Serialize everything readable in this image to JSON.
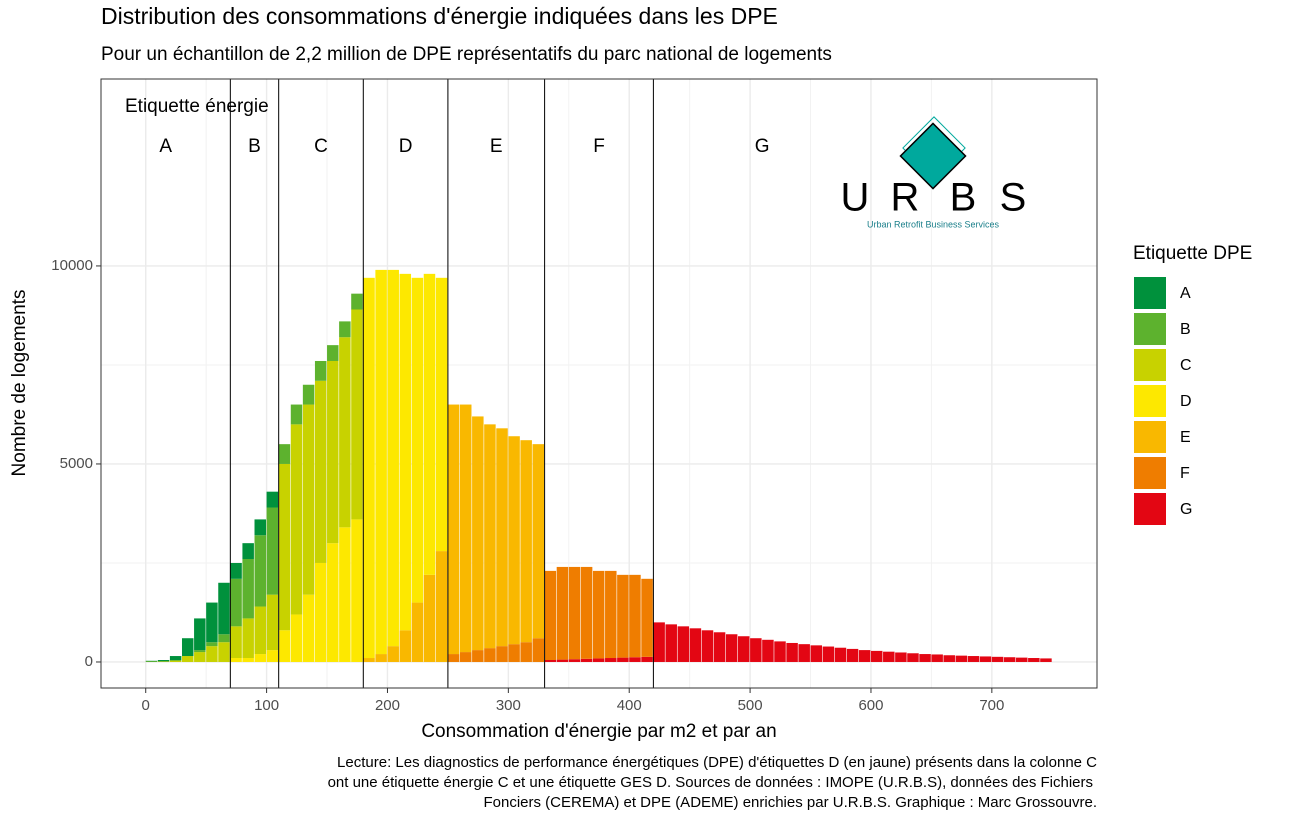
{
  "chart_data": {
    "type": "stacked_histogram",
    "title": "Distribution des consommations d'énergie indiquées dans les DPE",
    "subtitle": "Pour un échantillon de 2,2 million de DPE représentatifs du parc national de logements",
    "x_label": "Consommation d'énergie par m2 et par an",
    "y_label": "Nombre de logements",
    "legend_title": "Etiquette DPE",
    "class_title": "Etiquette énergie",
    "class_bounds": [
      70,
      110,
      180,
      250,
      330,
      420
    ],
    "class_labels": [
      "A",
      "B",
      "C",
      "D",
      "E",
      "F",
      "G"
    ],
    "bins": [
      0,
      10,
      20,
      30,
      40,
      50,
      60,
      70,
      80,
      90,
      100,
      110,
      120,
      130,
      140,
      150,
      160,
      170,
      180,
      190,
      200,
      210,
      220,
      230,
      240,
      250,
      260,
      270,
      280,
      290,
      300,
      310,
      320,
      330,
      340,
      350,
      360,
      370,
      380,
      390,
      400,
      410,
      420,
      430,
      440,
      450,
      460,
      470,
      480,
      490,
      500,
      510,
      520,
      530,
      540,
      550,
      560,
      570,
      580,
      590,
      600,
      610,
      620,
      630,
      640,
      650,
      660,
      670,
      680,
      690,
      700,
      710,
      720,
      730,
      740,
      750
    ],
    "series": [
      {
        "name": "A",
        "color": "#00913c",
        "values": [
          20,
          35,
          110,
          450,
          800,
          1000,
          1300,
          400,
          400,
          400,
          400,
          0,
          0,
          0,
          0,
          0,
          0,
          0,
          0,
          0,
          0,
          0,
          0,
          0,
          0,
          0,
          0,
          0,
          0,
          0,
          0,
          0,
          0,
          0,
          0,
          0,
          0,
          0,
          0,
          0,
          0,
          0,
          0,
          0,
          0,
          0,
          0,
          0,
          0,
          0,
          0,
          0,
          0,
          0,
          0,
          0,
          0,
          0,
          0,
          0,
          0,
          0,
          0,
          0,
          0,
          0,
          0,
          0,
          0,
          0,
          0,
          0,
          0,
          0,
          0
        ]
      },
      {
        "name": "B",
        "color": "#5db22e",
        "values": [
          0,
          0,
          0,
          0,
          50,
          100,
          200,
          1200,
          1500,
          1800,
          2200,
          500,
          500,
          500,
          500,
          400,
          400,
          400,
          0,
          0,
          0,
          0,
          0,
          0,
          0,
          0,
          0,
          0,
          0,
          0,
          0,
          0,
          0,
          0,
          0,
          0,
          0,
          0,
          0,
          0,
          0,
          0,
          0,
          0,
          0,
          0,
          0,
          0,
          0,
          0,
          0,
          0,
          0,
          0,
          0,
          0,
          0,
          0,
          0,
          0,
          0,
          0,
          0,
          0,
          0,
          0,
          0,
          0,
          0,
          0,
          0,
          0,
          0,
          0,
          0
        ]
      },
      {
        "name": "C",
        "color": "#c8d200",
        "values": [
          10,
          15,
          40,
          150,
          250,
          400,
          500,
          800,
          1000,
          1200,
          1400,
          4200,
          4800,
          4800,
          4600,
          4600,
          4800,
          5300,
          0,
          0,
          0,
          0,
          0,
          0,
          0,
          0,
          0,
          0,
          0,
          0,
          0,
          0,
          0,
          0,
          0,
          0,
          0,
          0,
          0,
          0,
          0,
          0,
          0,
          0,
          0,
          0,
          0,
          0,
          0,
          0,
          0,
          0,
          0,
          0,
          0,
          0,
          0,
          0,
          0,
          0,
          0,
          0,
          0,
          0,
          0,
          0,
          0,
          0,
          0,
          0,
          0,
          0,
          0,
          0,
          0
        ]
      },
      {
        "name": "D",
        "color": "#fde800",
        "values": [
          0,
          0,
          0,
          0,
          0,
          0,
          0,
          100,
          100,
          200,
          300,
          800,
          1200,
          1700,
          2500,
          3000,
          3400,
          3600,
          9600,
          9700,
          9500,
          9000,
          8200,
          7600,
          6900,
          0,
          0,
          0,
          0,
          0,
          0,
          0,
          0,
          0,
          0,
          0,
          0,
          0,
          0,
          0,
          0,
          0,
          0,
          0,
          0,
          0,
          0,
          0,
          0,
          0,
          0,
          0,
          0,
          0,
          0,
          0,
          0,
          0,
          0,
          0,
          0,
          0,
          0,
          0,
          0,
          0,
          0,
          0,
          0,
          0,
          0,
          0,
          0,
          0,
          0
        ]
      },
      {
        "name": "E",
        "color": "#f9b800",
        "values": [
          0,
          0,
          0,
          0,
          0,
          0,
          0,
          0,
          0,
          0,
          0,
          0,
          0,
          0,
          0,
          0,
          0,
          0,
          100,
          200,
          400,
          800,
          1500,
          2200,
          2800,
          6300,
          6250,
          5900,
          5650,
          5500,
          5250,
          5100,
          4900,
          0,
          0,
          0,
          0,
          0,
          0,
          0,
          0,
          0,
          0,
          0,
          0,
          0,
          0,
          0,
          0,
          0,
          0,
          0,
          0,
          0,
          0,
          0,
          0,
          0,
          0,
          0,
          0,
          0,
          0,
          0,
          0,
          0,
          0,
          0,
          0,
          0,
          0,
          0,
          0,
          0,
          0
        ]
      },
      {
        "name": "F",
        "color": "#ef7d00",
        "values": [
          0,
          0,
          0,
          0,
          0,
          0,
          0,
          0,
          0,
          0,
          0,
          0,
          0,
          0,
          0,
          0,
          0,
          0,
          0,
          0,
          0,
          0,
          0,
          0,
          0,
          200,
          250,
          300,
          350,
          400,
          450,
          500,
          600,
          2250,
          2340,
          2330,
          2320,
          2210,
          2200,
          2090,
          2080,
          1970,
          0,
          0,
          0,
          0,
          0,
          0,
          0,
          0,
          0,
          0,
          0,
          0,
          0,
          0,
          0,
          0,
          0,
          0,
          0,
          0,
          0,
          0,
          0,
          0,
          0,
          0,
          0,
          0,
          0,
          0,
          0,
          0,
          0
        ]
      },
      {
        "name": "G",
        "color": "#e30613",
        "values": [
          0,
          0,
          0,
          0,
          0,
          0,
          0,
          0,
          0,
          0,
          0,
          0,
          0,
          0,
          0,
          0,
          0,
          0,
          0,
          0,
          0,
          0,
          0,
          0,
          0,
          0,
          0,
          0,
          0,
          0,
          0,
          0,
          0,
          50,
          60,
          70,
          80,
          90,
          100,
          110,
          120,
          130,
          1000,
          950,
          900,
          850,
          800,
          750,
          700,
          650,
          600,
          560,
          520,
          480,
          450,
          420,
          390,
          360,
          330,
          300,
          280,
          260,
          240,
          220,
          200,
          190,
          170,
          160,
          150,
          140,
          130,
          120,
          110,
          100,
          90
        ]
      }
    ],
    "xlim": [
      -37,
      787
    ],
    "ylim": [
      -657,
      14720
    ],
    "xticks": [
      0,
      100,
      200,
      300,
      400,
      500,
      600,
      700
    ],
    "yticks": [
      0,
      5000,
      10000
    ],
    "grid": true,
    "caption": [
      "Lecture: Les diagnostics de performance énergétiques (DPE) d'étiquettes D (en jaune) présents dans la colonne C",
      "ont une étiquette énergie C et une étiquette GES D. Sources de données : IMOPE (U.R.B.S), données des Fichiers",
      "Fonciers (CEREMA) et DPE (ADEME) enrichies par U.R.B.S. Graphique : Marc Grossouvre."
    ]
  },
  "logo": {
    "letters": [
      "U",
      "R",
      "B",
      "S"
    ],
    "tagline": "Urban Retrofit Business Services"
  }
}
